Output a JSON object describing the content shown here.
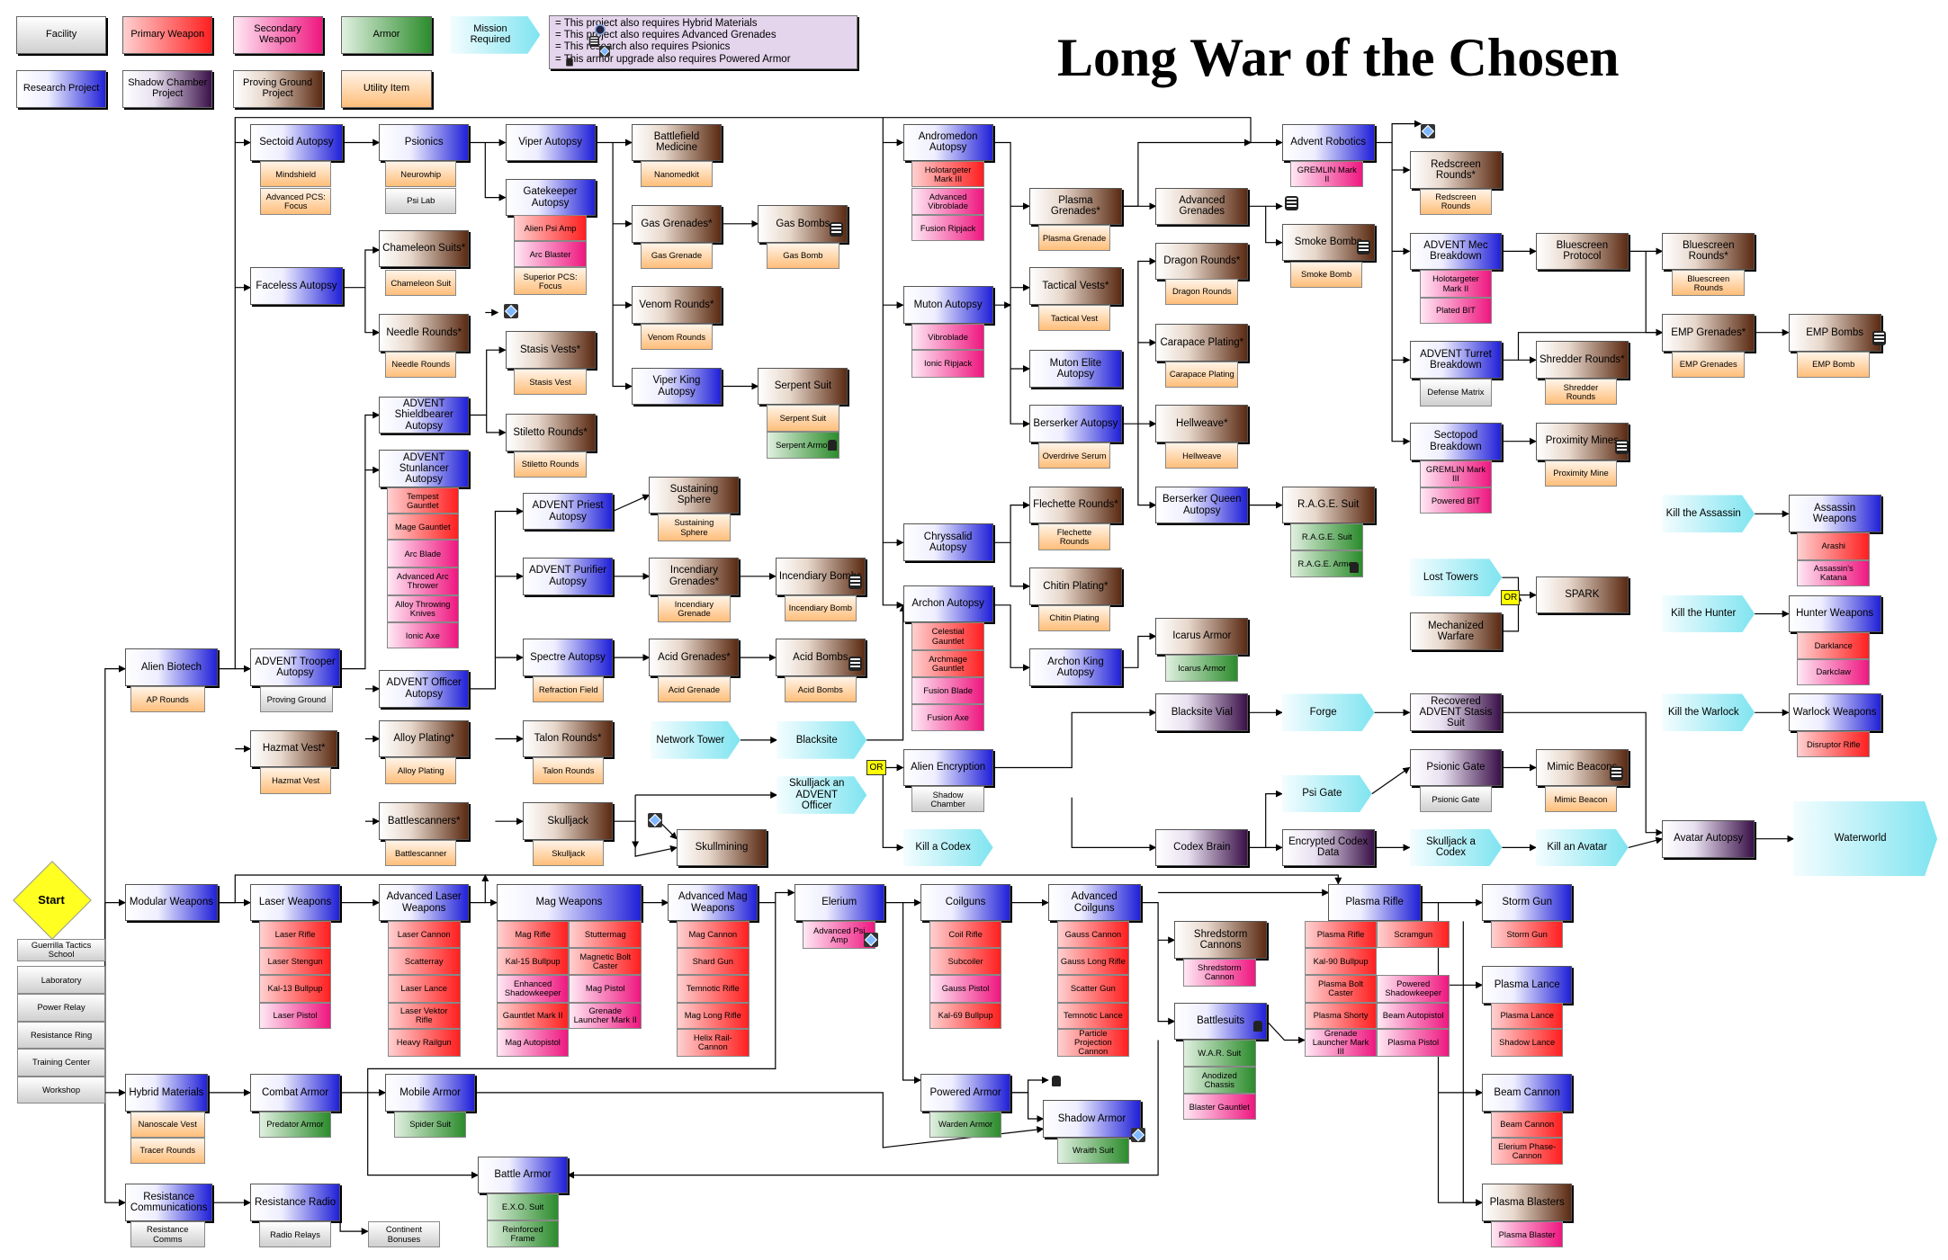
{
  "title": "Long War of the Chosen",
  "start": {
    "label": "Start"
  },
  "legend": {
    "types": [
      {
        "label": "Facility",
        "kind": "facility"
      },
      {
        "label": "Primary Weapon",
        "kind": "primary"
      },
      {
        "label": "Secondary Weapon",
        "kind": "secondary"
      },
      {
        "label": "Armor",
        "kind": "armor"
      },
      {
        "label": "Mission Required",
        "kind": "mission"
      },
      {
        "label": "Research Project",
        "kind": "research"
      },
      {
        "label": "Shadow Chamber Project",
        "kind": "shadow"
      },
      {
        "label": "Proving Ground Project",
        "kind": "proving"
      },
      {
        "label": "Utility Item",
        "kind": "utility"
      }
    ],
    "requirements": [
      "  = This project also requires Hybrid Materials",
      "  = This project also requires Advanced Grenades",
      "  = This research also requires Psionics",
      "  = This armor upgrade also requires Powered Armor"
    ]
  },
  "colors": {
    "research": "#2020d8",
    "proving": "#5a2a12",
    "shadow": "#3a1048",
    "primary": "#ff2020",
    "secondary": "#ee1880",
    "armor": "#2c8c2c",
    "utility": "#ffbe7a",
    "mission": "#7fe4f0",
    "facility": "#cfcfcf",
    "start": "#ffff22",
    "or_tag": "#ffff00",
    "legend_bg": "#e4d4ec"
  },
  "icons": [
    "psionics-icon",
    "grenades-icon",
    "powered-armor-icon",
    "hybrid-materials-icon"
  ],
  "or_label": "OR",
  "nodes": [
    {
      "label": "Guerrilla Tactics School",
      "kind": "facility"
    },
    {
      "label": "Laboratory",
      "kind": "facility"
    },
    {
      "label": "Power Relay",
      "kind": "facility"
    },
    {
      "label": "Resistance Ring",
      "kind": "facility"
    },
    {
      "label": "Training Center",
      "kind": "facility"
    },
    {
      "label": "Workshop",
      "kind": "facility"
    },
    {
      "label": "Alien Biotech",
      "kind": "research"
    },
    {
      "label": "AP Rounds",
      "kind": "utility"
    },
    {
      "label": "Modular Weapons",
      "kind": "research"
    },
    {
      "label": "Hybrid Materials",
      "kind": "research"
    },
    {
      "label": "Nanoscale Vest",
      "kind": "utility"
    },
    {
      "label": "Tracer Rounds",
      "kind": "utility"
    },
    {
      "label": "Resistance Communications",
      "kind": "research"
    },
    {
      "label": "Resistance Comms",
      "kind": "facility"
    },
    {
      "label": "Sectoid Autopsy",
      "kind": "research"
    },
    {
      "label": "Mindshield",
      "kind": "utility"
    },
    {
      "label": "Advanced PCS: Focus",
      "kind": "utility"
    },
    {
      "label": "Psionics",
      "kind": "research"
    },
    {
      "label": "Neurowhip",
      "kind": "utility"
    },
    {
      "label": "Psi Lab",
      "kind": "facility"
    },
    {
      "label": "Faceless Autopsy",
      "kind": "research"
    },
    {
      "label": "Chameleon Suits*",
      "kind": "proving"
    },
    {
      "label": "Chameleon Suit",
      "kind": "utility"
    },
    {
      "label": "Needle Rounds*",
      "kind": "proving"
    },
    {
      "label": "Needle Rounds",
      "kind": "utility"
    },
    {
      "label": "ADVENT Shieldbearer Autopsy",
      "kind": "research"
    },
    {
      "label": "ADVENT Stunlancer Autopsy",
      "kind": "research"
    },
    {
      "label": "Tempest Gauntlet",
      "kind": "primary"
    },
    {
      "label": "Mage Gauntlet",
      "kind": "primary"
    },
    {
      "label": "Arc Blade",
      "kind": "secondary"
    },
    {
      "label": "Advanced Arc Thrower",
      "kind": "secondary"
    },
    {
      "label": "Alloy Throwing Knives",
      "kind": "secondary"
    },
    {
      "label": "Ionic Axe",
      "kind": "secondary"
    },
    {
      "label": "ADVENT Trooper Autopsy",
      "kind": "research"
    },
    {
      "label": "Proving Ground",
      "kind": "facility"
    },
    {
      "label": "ADVENT Officer Autopsy",
      "kind": "research"
    },
    {
      "label": "Alloy Plating*",
      "kind": "proving"
    },
    {
      "label": "Alloy Plating",
      "kind": "utility"
    },
    {
      "label": "Battlescanners*",
      "kind": "proving"
    },
    {
      "label": "Battlescanner",
      "kind": "utility"
    },
    {
      "label": "Hazmat Vest*",
      "kind": "proving"
    },
    {
      "label": "Hazmat Vest",
      "kind": "utility"
    },
    {
      "label": "Viper Autopsy",
      "kind": "research"
    },
    {
      "label": "Gatekeeper Autopsy",
      "kind": "research"
    },
    {
      "label": "Alien Psi Amp",
      "kind": "primary"
    },
    {
      "label": "Arc Blaster",
      "kind": "secondary"
    },
    {
      "label": "Superior PCS: Focus",
      "kind": "utility"
    },
    {
      "label": "Stasis Vests*",
      "kind": "proving"
    },
    {
      "label": "Stasis Vest",
      "kind": "utility"
    },
    {
      "label": "Stiletto Rounds*",
      "kind": "proving"
    },
    {
      "label": "Stiletto Rounds",
      "kind": "utility"
    },
    {
      "label": "Battlefield Medicine",
      "kind": "proving"
    },
    {
      "label": "Nanomedkit",
      "kind": "utility"
    },
    {
      "label": "Gas Grenades*",
      "kind": "proving"
    },
    {
      "label": "Gas Grenade",
      "kind": "utility"
    },
    {
      "label": "Gas Bombs",
      "kind": "proving"
    },
    {
      "label": "Gas Bomb",
      "kind": "utility"
    },
    {
      "label": "Venom Rounds*",
      "kind": "proving"
    },
    {
      "label": "Venom Rounds",
      "kind": "utility"
    },
    {
      "label": "Viper King Autopsy",
      "kind": "research"
    },
    {
      "label": "Serpent Suit",
      "kind": "proving"
    },
    {
      "label": "Serpent Suit",
      "kind": "utility"
    },
    {
      "label": "Serpent Armor",
      "kind": "armor"
    },
    {
      "label": "ADVENT Priest Autopsy",
      "kind": "research"
    },
    {
      "label": "Sustaining Sphere",
      "kind": "proving"
    },
    {
      "label": "Sustaining Sphere",
      "kind": "utility"
    },
    {
      "label": "ADVENT Purifier Autopsy",
      "kind": "research"
    },
    {
      "label": "Incendiary Grenades*",
      "kind": "proving"
    },
    {
      "label": "Incendiary Grenade",
      "kind": "utility"
    },
    {
      "label": "Incendiary Bombs",
      "kind": "proving"
    },
    {
      "label": "Incendiary Bomb",
      "kind": "utility"
    },
    {
      "label": "Spectre Autopsy",
      "kind": "research"
    },
    {
      "label": "Refraction Field",
      "kind": "utility"
    },
    {
      "label": "Acid Grenades*",
      "kind": "proving"
    },
    {
      "label": "Acid Grenade",
      "kind": "utility"
    },
    {
      "label": "Acid Bombs",
      "kind": "proving"
    },
    {
      "label": "Acid Bombs",
      "kind": "utility"
    },
    {
      "label": "Talon Rounds*",
      "kind": "proving"
    },
    {
      "label": "Talon Rounds",
      "kind": "utility"
    },
    {
      "label": "Network Tower",
      "kind": "mission"
    },
    {
      "label": "Blacksite",
      "kind": "mission"
    },
    {
      "label": "Skulljack",
      "kind": "proving"
    },
    {
      "label": "Skulljack",
      "kind": "utility"
    },
    {
      "label": "Skullmining",
      "kind": "proving"
    },
    {
      "label": "Skulljack an ADVENT Officer",
      "kind": "mission"
    },
    {
      "label": "Andromedon Autopsy",
      "kind": "research"
    },
    {
      "label": "Holotargeter Mark III",
      "kind": "primary"
    },
    {
      "label": "Advanced Vibroblade",
      "kind": "secondary"
    },
    {
      "label": "Fusion Ripjack",
      "kind": "secondary"
    },
    {
      "label": "Plasma Grenades*",
      "kind": "proving"
    },
    {
      "label": "Plasma Grenade",
      "kind": "utility"
    },
    {
      "label": "Advanced Grenades",
      "kind": "proving"
    },
    {
      "label": "Smoke Bombs",
      "kind": "proving"
    },
    {
      "label": "Smoke Bomb",
      "kind": "utility"
    },
    {
      "label": "Tactical Vests*",
      "kind": "proving"
    },
    {
      "label": "Tactical Vest",
      "kind": "utility"
    },
    {
      "label": "Dragon Rounds*",
      "kind": "proving"
    },
    {
      "label": "Dragon Rounds",
      "kind": "utility"
    },
    {
      "label": "Carapace Plating*",
      "kind": "proving"
    },
    {
      "label": "Carapace Plating",
      "kind": "utility"
    },
    {
      "label": "Muton Autopsy",
      "kind": "research"
    },
    {
      "label": "Vibroblade",
      "kind": "secondary"
    },
    {
      "label": "Ionic Ripjack",
      "kind": "secondary"
    },
    {
      "label": "Muton Elite Autopsy",
      "kind": "research"
    },
    {
      "label": "Berserker Autopsy",
      "kind": "research"
    },
    {
      "label": "Overdrive Serum",
      "kind": "utility"
    },
    {
      "label": "Hellweave*",
      "kind": "proving"
    },
    {
      "label": "Hellweave",
      "kind": "utility"
    },
    {
      "label": "Berserker Queen Autopsy",
      "kind": "research"
    },
    {
      "label": "R.A.G.E. Suit",
      "kind": "proving"
    },
    {
      "label": "R.A.G.E. Suit",
      "kind": "armor"
    },
    {
      "label": "R.A.G.E. Armor",
      "kind": "armor"
    },
    {
      "label": "Chryssalid Autopsy",
      "kind": "research"
    },
    {
      "label": "Flechette Rounds*",
      "kind": "proving"
    },
    {
      "label": "Flechette Rounds",
      "kind": "utility"
    },
    {
      "label": "Chitin Plating*",
      "kind": "proving"
    },
    {
      "label": "Chitin Plating",
      "kind": "utility"
    },
    {
      "label": "Archon Autopsy",
      "kind": "research"
    },
    {
      "label": "Celestial Gauntlet",
      "kind": "primary"
    },
    {
      "label": "Archmage Gauntlet",
      "kind": "primary"
    },
    {
      "label": "Fusion Blade",
      "kind": "secondary"
    },
    {
      "label": "Fusion Axe",
      "kind": "secondary"
    },
    {
      "label": "Archon King Autopsy",
      "kind": "research"
    },
    {
      "label": "Icarus Armor",
      "kind": "proving"
    },
    {
      "label": "Icarus Armor",
      "kind": "armor"
    },
    {
      "label": "Alien Encryption",
      "kind": "research"
    },
    {
      "label": "Shadow Chamber",
      "kind": "facility"
    },
    {
      "label": "Kill a Codex",
      "kind": "mission"
    },
    {
      "label": "Blacksite Vial",
      "kind": "shadow"
    },
    {
      "label": "Forge",
      "kind": "mission"
    },
    {
      "label": "Recovered ADVENT Stasis Suit",
      "kind": "shadow"
    },
    {
      "label": "Psi Gate",
      "kind": "mission"
    },
    {
      "label": "Psionic Gate",
      "kind": "shadow"
    },
    {
      "label": "Psionic Gate",
      "kind": "facility"
    },
    {
      "label": "Mimic Beacons",
      "kind": "proving"
    },
    {
      "label": "Mimic Beacon",
      "kind": "utility"
    },
    {
      "label": "Codex Brain",
      "kind": "shadow"
    },
    {
      "label": "Encrypted Codex Data",
      "kind": "shadow"
    },
    {
      "label": "Skulljack a Codex",
      "kind": "mission"
    },
    {
      "label": "Kill an Avatar",
      "kind": "mission"
    },
    {
      "label": "Avatar Autopsy",
      "kind": "shadow"
    },
    {
      "label": "Waterworld",
      "kind": "mission"
    },
    {
      "label": "Advent Robotics",
      "kind": "research"
    },
    {
      "label": "GREMLIN Mark II",
      "kind": "secondary"
    },
    {
      "label": "Redscreen Rounds*",
      "kind": "proving"
    },
    {
      "label": "Redscreen Rounds",
      "kind": "utility"
    },
    {
      "label": "ADVENT Mec Breakdown",
      "kind": "research"
    },
    {
      "label": "Holotargeter Mark II",
      "kind": "secondary"
    },
    {
      "label": "Plated BIT",
      "kind": "secondary"
    },
    {
      "label": "Bluescreen Protocol",
      "kind": "proving"
    },
    {
      "label": "Bluescreen Rounds*",
      "kind": "proving"
    },
    {
      "label": "Bluescreen Rounds",
      "kind": "utility"
    },
    {
      "label": "EMP Grenades*",
      "kind": "proving"
    },
    {
      "label": "EMP Grenades",
      "kind": "utility"
    },
    {
      "label": "EMP Bombs",
      "kind": "proving"
    },
    {
      "label": "EMP Bomb",
      "kind": "utility"
    },
    {
      "label": "ADVENT Turret Breakdown",
      "kind": "research"
    },
    {
      "label": "Defense Matrix",
      "kind": "facility"
    },
    {
      "label": "Shredder Rounds*",
      "kind": "proving"
    },
    {
      "label": "Shredder Rounds",
      "kind": "utility"
    },
    {
      "label": "Sectopod Breakdown",
      "kind": "research"
    },
    {
      "label": "GREMLIN Mark III",
      "kind": "secondary"
    },
    {
      "label": "Powered BIT",
      "kind": "secondary"
    },
    {
      "label": "Proximity Mines",
      "kind": "proving"
    },
    {
      "label": "Proximity Mine",
      "kind": "utility"
    },
    {
      "label": "Lost Towers",
      "kind": "mission"
    },
    {
      "label": "Mechanized Warfare",
      "kind": "proving"
    },
    {
      "label": "SPARK",
      "kind": "proving"
    },
    {
      "label": "Kill the Assassin",
      "kind": "mission"
    },
    {
      "label": "Assassin Weapons",
      "kind": "research"
    },
    {
      "label": "Arashi",
      "kind": "primary"
    },
    {
      "label": "Assassin's Katana",
      "kind": "secondary"
    },
    {
      "label": "Kill the Hunter",
      "kind": "mission"
    },
    {
      "label": "Hunter Weapons",
      "kind": "research"
    },
    {
      "label": "Darklance",
      "kind": "primary"
    },
    {
      "label": "Darkclaw",
      "kind": "secondary"
    },
    {
      "label": "Kill the Warlock",
      "kind": "mission"
    },
    {
      "label": "Warlock Weapons",
      "kind": "research"
    },
    {
      "label": "Disruptor Rifle",
      "kind": "primary"
    },
    {
      "label": "Laser Weapons",
      "kind": "research"
    },
    {
      "label": "Laser Rifle",
      "kind": "primary"
    },
    {
      "label": "Laser Stengun",
      "kind": "primary"
    },
    {
      "label": "Kal-13 Bullpup",
      "kind": "primary"
    },
    {
      "label": "Laser Pistol",
      "kind": "secondary"
    },
    {
      "label": "Advanced Laser Weapons",
      "kind": "research"
    },
    {
      "label": "Laser Cannon",
      "kind": "primary"
    },
    {
      "label": "Scatterray",
      "kind": "primary"
    },
    {
      "label": "Laser Lance",
      "kind": "primary"
    },
    {
      "label": "Laser Vektor Rifle",
      "kind": "primary"
    },
    {
      "label": "Heavy Railgun",
      "kind": "primary"
    },
    {
      "label": "Mag Weapons",
      "kind": "research"
    },
    {
      "label": "Mag Rifle",
      "kind": "primary"
    },
    {
      "label": "Kal-15 Bullpup",
      "kind": "primary"
    },
    {
      "label": "Enhanced Shadowkeeper",
      "kind": "secondary"
    },
    {
      "label": "Gauntlet Mark II",
      "kind": "primary"
    },
    {
      "label": "Mag Autopistol",
      "kind": "secondary"
    },
    {
      "label": "Stuttermag",
      "kind": "primary"
    },
    {
      "label": "Magnetic Bolt Caster",
      "kind": "primary"
    },
    {
      "label": "Mag Pistol",
      "kind": "secondary"
    },
    {
      "label": "Grenade Launcher Mark II",
      "kind": "secondary"
    },
    {
      "label": "Advanced Mag Weapons",
      "kind": "research"
    },
    {
      "label": "Mag Cannon",
      "kind": "primary"
    },
    {
      "label": "Shard Gun",
      "kind": "primary"
    },
    {
      "label": "Temnotic Rifle",
      "kind": "primary"
    },
    {
      "label": "Mag Long Rifle",
      "kind": "primary"
    },
    {
      "label": "Helix Rail-Cannon",
      "kind": "primary"
    },
    {
      "label": "Elerium",
      "kind": "research"
    },
    {
      "label": "Advanced Psi Amp",
      "kind": "secondary"
    },
    {
      "label": "Coilguns",
      "kind": "research"
    },
    {
      "label": "Coil Rifle",
      "kind": "primary"
    },
    {
      "label": "Subcoiler",
      "kind": "primary"
    },
    {
      "label": "Gauss Pistol",
      "kind": "secondary"
    },
    {
      "label": "Kal-69 Bullpup",
      "kind": "primary"
    },
    {
      "label": "Advanced Coilguns",
      "kind": "research"
    },
    {
      "label": "Gauss Cannon",
      "kind": "primary"
    },
    {
      "label": "Gauss Long Rifle",
      "kind": "primary"
    },
    {
      "label": "Scatter Gun",
      "kind": "primary"
    },
    {
      "label": "Temnotic Lance",
      "kind": "primary"
    },
    {
      "label": "Particle Projection Cannon",
      "kind": "primary"
    },
    {
      "label": "Shredstorm Cannons",
      "kind": "proving"
    },
    {
      "label": "Shredstorm Cannon",
      "kind": "secondary"
    },
    {
      "label": "Battlesuits",
      "kind": "research"
    },
    {
      "label": "W.A.R. Suit",
      "kind": "armor"
    },
    {
      "label": "Anodized Chassis",
      "kind": "armor"
    },
    {
      "label": "Blaster Gauntlet",
      "kind": "secondary"
    },
    {
      "label": "Plasma Rifle",
      "kind": "research"
    },
    {
      "label": "Plasma Rifle",
      "kind": "primary"
    },
    {
      "label": "Kal-90 Bullpup",
      "kind": "primary"
    },
    {
      "label": "Plasma Bolt Caster",
      "kind": "primary"
    },
    {
      "label": "Plasma Shorty",
      "kind": "primary"
    },
    {
      "label": "Grenade Launcher Mark III",
      "kind": "secondary"
    },
    {
      "label": "Scramgun",
      "kind": "primary"
    },
    {
      "label": "Powered Shadowkeeper",
      "kind": "secondary"
    },
    {
      "label": "Beam Autopistol",
      "kind": "secondary"
    },
    {
      "label": "Plasma Pistol",
      "kind": "secondary"
    },
    {
      "label": "Storm Gun",
      "kind": "research"
    },
    {
      "label": "Storm Gun",
      "kind": "primary"
    },
    {
      "label": "Plasma Lance",
      "kind": "research"
    },
    {
      "label": "Plasma Lance",
      "kind": "primary"
    },
    {
      "label": "Shadow Lance",
      "kind": "primary"
    },
    {
      "label": "Beam Cannon",
      "kind": "research"
    },
    {
      "label": "Beam Cannon",
      "kind": "primary"
    },
    {
      "label": "Elerium Phase-Cannon",
      "kind": "primary"
    },
    {
      "label": "Plasma Blasters",
      "kind": "proving"
    },
    {
      "label": "Plasma Blaster",
      "kind": "secondary"
    },
    {
      "label": "Combat Armor",
      "kind": "research"
    },
    {
      "label": "Predator Armor",
      "kind": "armor"
    },
    {
      "label": "Mobile Armor",
      "kind": "research"
    },
    {
      "label": "Spider Suit",
      "kind": "armor"
    },
    {
      "label": "Powered Armor",
      "kind": "research"
    },
    {
      "label": "Warden Armor",
      "kind": "armor"
    },
    {
      "label": "Shadow Armor",
      "kind": "research"
    },
    {
      "label": "Wraith Suit",
      "kind": "armor"
    },
    {
      "label": "Battle Armor",
      "kind": "research"
    },
    {
      "label": "E.X.O. Suit",
      "kind": "armor"
    },
    {
      "label": "Reinforced Frame",
      "kind": "armor"
    },
    {
      "label": "Resistance Radio",
      "kind": "research"
    },
    {
      "label": "Radio Relays",
      "kind": "facility"
    },
    {
      "label": "Continent Bonuses",
      "kind": "facility"
    }
  ]
}
